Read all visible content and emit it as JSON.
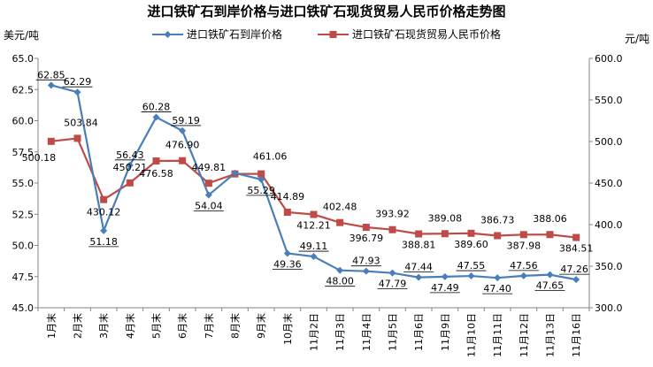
{
  "chart_data": {
    "type": "line",
    "title": "进口铁矿石到岸价格与进口铁矿石现货贸易人民币价格走势图",
    "y_left_unit": "美元/吨",
    "y_right_unit": "元/吨",
    "y_left_range": [
      45.0,
      65.0
    ],
    "y_left_ticks": [
      "45.0",
      "47.5",
      "50.0",
      "52.5",
      "55.0",
      "57.5",
      "60.0",
      "62.5",
      "65.0"
    ],
    "y_right_range": [
      300.0,
      600.0
    ],
    "y_right_ticks": [
      "300.0",
      "350.0",
      "400.0",
      "450.0",
      "500.0",
      "550.0",
      "600.0"
    ],
    "legend_position": "top",
    "categories": [
      "1月末",
      "2月末",
      "3月末",
      "4月末",
      "5月末",
      "6月末",
      "7月末",
      "8月末",
      "9月末",
      "10月末",
      "11月2日",
      "11月3日",
      "11月4日",
      "11月5日",
      "11月6日",
      "11月9日",
      "11月10日",
      "11月11日",
      "11月12日",
      "11月13日",
      "11月16日"
    ],
    "series": [
      {
        "name": "进口铁矿石到岸价格",
        "axis": "left",
        "color": "#4a7ebb",
        "marker": "diamond",
        "values": [
          62.85,
          62.29,
          51.18,
          56.43,
          60.28,
          59.19,
          54.04,
          55.8,
          55.29,
          49.36,
          49.11,
          48.0,
          47.93,
          47.79,
          47.44,
          47.49,
          47.55,
          47.4,
          47.56,
          47.65,
          47.26
        ],
        "labels": [
          "62.85",
          "62.29",
          "51.18",
          "56.43",
          "60.28",
          "59.19",
          "54.04",
          "",
          "55.29",
          "49.36",
          "49.11",
          "48.00",
          "47.93",
          "47.79",
          "47.44",
          "47.49",
          "47.55",
          "47.40",
          "47.56",
          "47.65",
          "47.26"
        ]
      },
      {
        "name": "进口铁矿石现货贸易人民币价格",
        "axis": "right",
        "color": "#be4b48",
        "marker": "square",
        "values": [
          500.18,
          503.84,
          430.12,
          450.21,
          476.58,
          476.9,
          449.81,
          461.0,
          461.06,
          414.89,
          412.21,
          402.48,
          396.79,
          393.92,
          388.81,
          389.08,
          389.6,
          386.73,
          387.98,
          388.06,
          384.51
        ],
        "labels": [
          "500.18",
          "503.84",
          "430.12",
          "450.21",
          "476.58",
          "476.90",
          "449.81",
          "",
          "461.06",
          "414.89",
          "412.21",
          "402.48",
          "396.79",
          "393.92",
          "388.81",
          "389.08",
          "389.60",
          "386.73",
          "387.98",
          "388.06",
          "384.51"
        ]
      }
    ]
  }
}
